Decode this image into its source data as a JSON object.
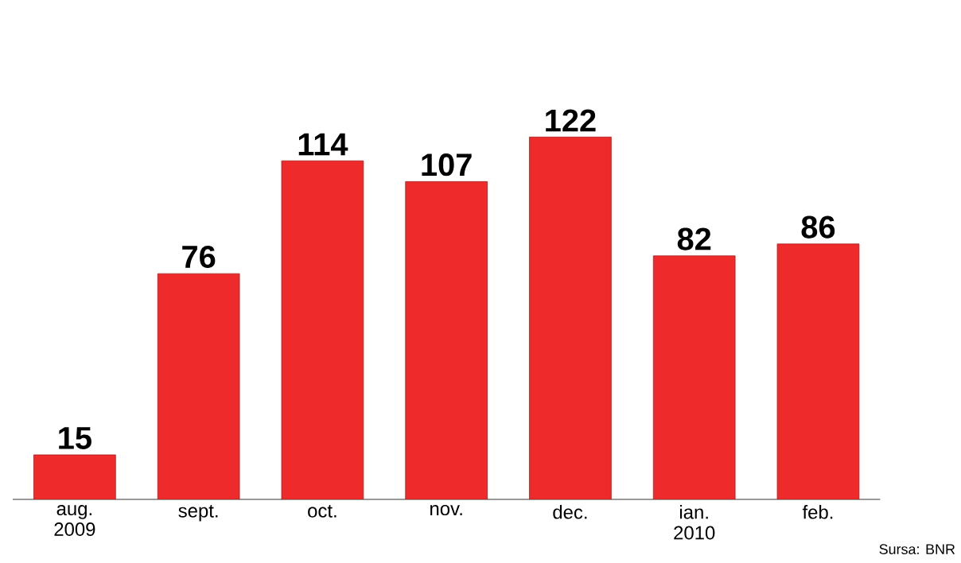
{
  "chart_data": {
    "type": "bar",
    "categories": [
      "aug. 2009",
      "sept.",
      "oct.",
      "nov.",
      "dec.",
      "ian. 2010",
      "feb."
    ],
    "values": [
      15,
      76,
      114,
      107,
      122,
      82,
      86
    ],
    "value_labels": [
      "15",
      "76",
      "114",
      "107",
      "122",
      "82",
      "86"
    ],
    "color": "#ee2a2a",
    "annotations": [
      "Sursa: BNR"
    ]
  }
}
